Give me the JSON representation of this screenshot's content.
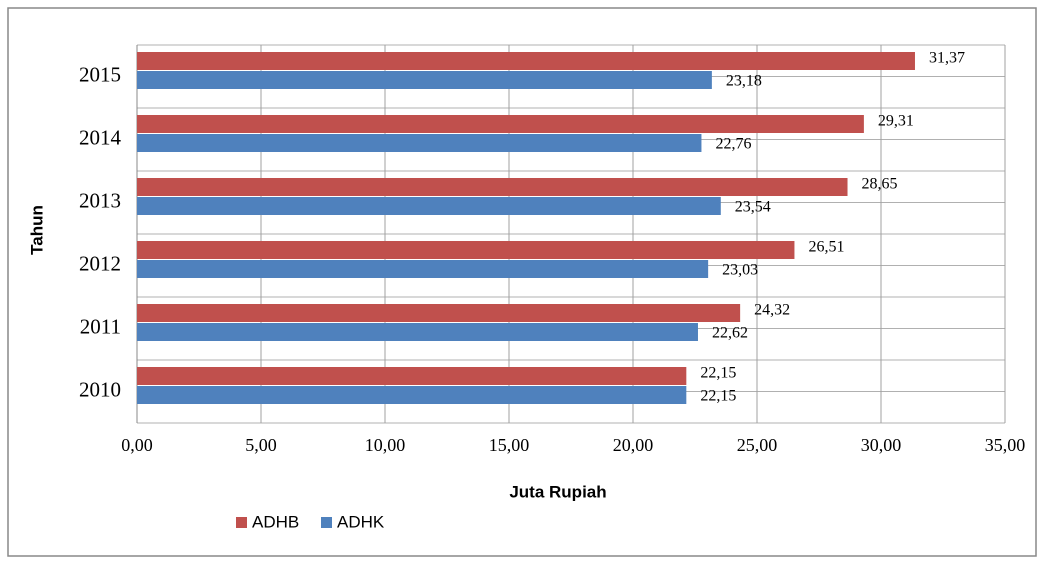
{
  "chart_data": {
    "type": "bar",
    "orientation": "horizontal",
    "x_label": "Juta Rupiah",
    "y_label": "Tahun",
    "categories": [
      "2010",
      "2011",
      "2012",
      "2013",
      "2014",
      "2015"
    ],
    "series": [
      {
        "name": "ADHB",
        "color": "#c0504d",
        "values": [
          22.15,
          24.32,
          26.51,
          28.65,
          29.31,
          31.37
        ],
        "value_labels": [
          "22,15",
          "24,32",
          "26,51",
          "28,65",
          "29,31",
          "31,37"
        ]
      },
      {
        "name": "ADHK",
        "color": "#4f81bd",
        "values": [
          22.15,
          22.62,
          23.03,
          23.54,
          22.76,
          23.18
        ],
        "value_labels": [
          "22,15",
          "22,62",
          "23,03",
          "23,54",
          "22,76",
          "23,18"
        ]
      }
    ],
    "xlim": [
      0,
      35
    ],
    "xticks": [
      {
        "value": 0,
        "label": "0,00"
      },
      {
        "value": 5,
        "label": "5,00"
      },
      {
        "value": 10,
        "label": "10,00"
      },
      {
        "value": 15,
        "label": "15,00"
      },
      {
        "value": 20,
        "label": "20,00"
      },
      {
        "value": 25,
        "label": "25,00"
      },
      {
        "value": 30,
        "label": "30,00"
      },
      {
        "value": 35,
        "label": "35,00"
      }
    ],
    "grid": true,
    "legend": "bottom-left"
  }
}
